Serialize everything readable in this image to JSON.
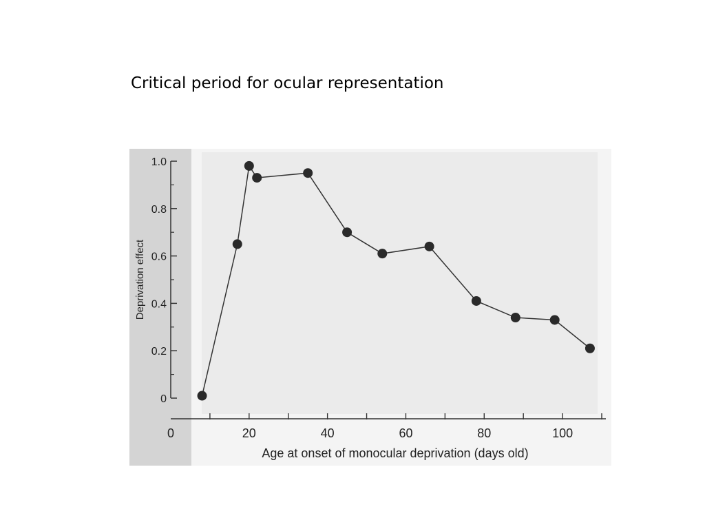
{
  "slide": {
    "title": "Critical period for ocular representation"
  },
  "colors": {
    "background": "#ffffff",
    "figure_left_strip": "#d4d4d4",
    "plot_fill": "#ebebeb",
    "line": "#333333",
    "marker": "#2a2a2a",
    "axis": "#333333"
  },
  "chart_data": {
    "type": "line",
    "title": "",
    "xlabel": "Age at onset of monocular deprivation (days old)",
    "ylabel": "Deprivation effect",
    "xlim": [
      0,
      110
    ],
    "ylim": [
      0,
      1.0
    ],
    "x_ticks": [
      0,
      20,
      40,
      60,
      80,
      100
    ],
    "x_tick_labels": [
      "0",
      "20",
      "40",
      "60",
      "80",
      "100"
    ],
    "y_ticks": [
      0,
      0.2,
      0.4,
      0.6,
      0.8,
      1.0
    ],
    "y_tick_labels": [
      "0",
      "0.2",
      "0.4",
      "0.6",
      "0.8",
      "1.0"
    ],
    "grid": false,
    "legend": "none",
    "marker": "filled-circle",
    "series": [
      {
        "x": [
          8,
          17,
          20,
          22,
          35,
          45,
          54,
          66,
          78,
          88,
          98,
          107
        ],
        "y": [
          0.01,
          0.65,
          0.98,
          0.93,
          0.95,
          0.7,
          0.61,
          0.64,
          0.41,
          0.34,
          0.33,
          0.21
        ]
      }
    ]
  }
}
